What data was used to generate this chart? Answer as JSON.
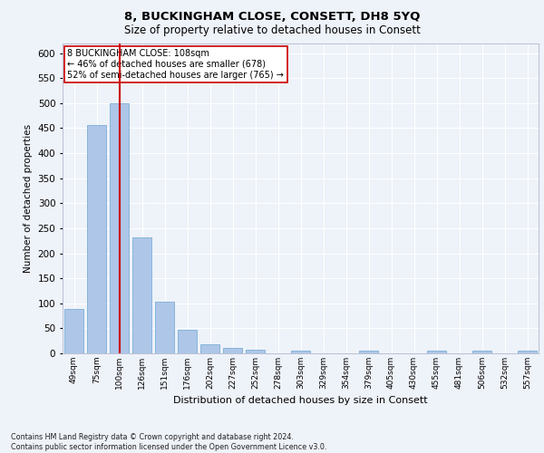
{
  "title": "8, BUCKINGHAM CLOSE, CONSETT, DH8 5YQ",
  "subtitle": "Size of property relative to detached houses in Consett",
  "xlabel": "Distribution of detached houses by size in Consett",
  "ylabel": "Number of detached properties",
  "categories": [
    "49sqm",
    "75sqm",
    "100sqm",
    "126sqm",
    "151sqm",
    "176sqm",
    "202sqm",
    "227sqm",
    "252sqm",
    "278sqm",
    "303sqm",
    "329sqm",
    "354sqm",
    "379sqm",
    "405sqm",
    "430sqm",
    "455sqm",
    "481sqm",
    "506sqm",
    "532sqm",
    "557sqm"
  ],
  "values": [
    88,
    456,
    500,
    232,
    103,
    47,
    19,
    11,
    7,
    0,
    5,
    0,
    0,
    5,
    0,
    0,
    5,
    0,
    5,
    0,
    5
  ],
  "bar_color": "#aec6e8",
  "bar_edge_color": "#7aafd6",
  "vline_x": 2,
  "vline_color": "#cc0000",
  "annotation_text": "8 BUCKINGHAM CLOSE: 108sqm\n← 46% of detached houses are smaller (678)\n52% of semi-detached houses are larger (765) →",
  "annotation_box_color": "#ffffff",
  "annotation_box_edge_color": "#cc0000",
  "ylim": [
    0,
    620
  ],
  "yticks": [
    0,
    50,
    100,
    150,
    200,
    250,
    300,
    350,
    400,
    450,
    500,
    550,
    600
  ],
  "background_color": "#eef2f9",
  "grid_color": "#ffffff",
  "footer": "Contains HM Land Registry data © Crown copyright and database right 2024.\nContains public sector information licensed under the Open Government Licence v3.0."
}
